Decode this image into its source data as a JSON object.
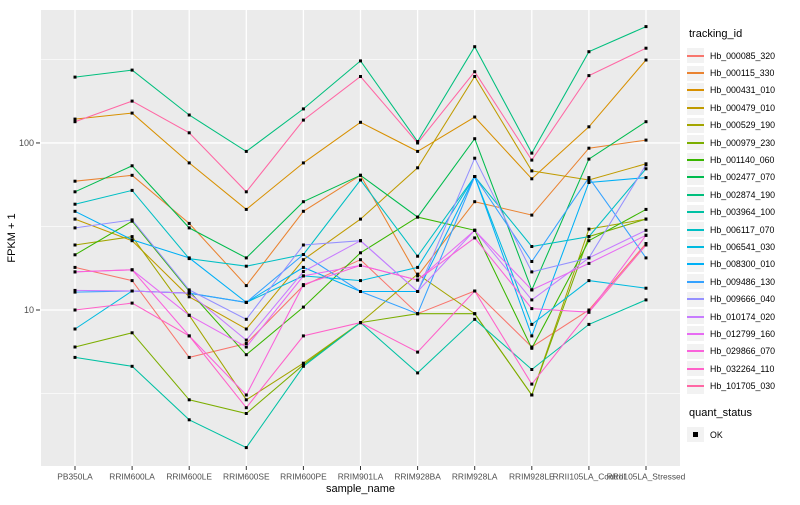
{
  "figure": {
    "background": "#FFFFFF",
    "panel_background": "#EBEBEB",
    "gridline_color": "#FFFFFF",
    "axis_text_color": "#4D4D4D",
    "axis_tick_color": "#333333",
    "point_color": "#000000"
  },
  "axes": {
    "x_title": "sample_name",
    "y_title": "FPKM + 1",
    "y_scale": "log10",
    "y_tick_labels": [
      "100",
      "10"
    ],
    "y_tick_values": [
      100,
      10
    ],
    "y_minor_values": [
      3.162,
      31.62,
      316.2
    ],
    "y_domain_log10": [
      0.066,
      2.796
    ]
  },
  "legend": {
    "title": "tracking_id",
    "position": "right"
  },
  "quant_legend": {
    "title": "quant_status",
    "items": [
      {
        "label": "OK",
        "marker": "black-square"
      }
    ]
  },
  "chart_data": {
    "type": "line",
    "title": "",
    "xlabel": "sample_name",
    "ylabel": "FPKM + 1",
    "y_scale": "log10",
    "ylim": [
      1.16,
      625
    ],
    "grid": true,
    "legend_position": "right",
    "marker": "small-black-square",
    "categories": [
      "PB350LA",
      "RRIM600LA",
      "RRIM600LE",
      "RRIM600SE",
      "RRIM600PE",
      "RRIM901LA",
      "RRIM928BA",
      "RRIM928LA",
      "RRIM928LE",
      "RRII105LA_Control",
      "RRII105LA_Stressed"
    ],
    "series": [
      {
        "name": "Hb_000085_320",
        "color": "#F8766D",
        "quant_status": "OK",
        "values": [
          18,
          15,
          5.2,
          6.3,
          14,
          20,
          9.5,
          13,
          6.0,
          10,
          25
        ]
      },
      {
        "name": "Hb_000115_330",
        "color": "#EA8331",
        "quant_status": "OK",
        "values": [
          59,
          64,
          33,
          14,
          39,
          64,
          16,
          44.5,
          37,
          93,
          104
        ]
      },
      {
        "name": "Hb_000431_010",
        "color": "#D89000",
        "quant_status": "OK",
        "values": [
          139,
          151,
          76,
          40,
          76,
          133,
          89,
          143,
          61,
          125,
          314
        ]
      },
      {
        "name": "Hb_000479_010",
        "color": "#C09B00",
        "quant_status": "OK",
        "values": [
          35,
          26,
          12,
          7.7,
          20,
          35,
          71,
          250,
          68,
          60,
          75
        ]
      },
      {
        "name": "Hb_000529_190",
        "color": "#A3A500",
        "quant_status": "OK",
        "values": [
          24.5,
          27.5,
          9.3,
          2.9,
          4.8,
          8.4,
          16.4,
          9.5,
          3.1,
          30.5,
          35
        ]
      },
      {
        "name": "Hb_000979_230",
        "color": "#7CAE00",
        "quant_status": "OK",
        "values": [
          6.0,
          7.3,
          2.9,
          2.4,
          4.7,
          8.4,
          9.5,
          9.5,
          3.1,
          27.5,
          35
        ]
      },
      {
        "name": "Hb_001140_060",
        "color": "#39B600",
        "quant_status": "OK",
        "values": [
          21.4,
          34,
          13,
          5.4,
          10.4,
          22,
          36,
          30,
          5.9,
          26,
          40
        ]
      },
      {
        "name": "Hb_002477_070",
        "color": "#00BB4E",
        "quant_status": "OK",
        "values": [
          51,
          73,
          31,
          20.5,
          44.5,
          64,
          36,
          106,
          13.2,
          80,
          134
        ]
      },
      {
        "name": "Hb_002874_190",
        "color": "#00BF7D",
        "quant_status": "OK",
        "values": [
          248,
          273,
          147,
          89,
          160,
          310,
          102,
          377,
          87,
          352,
          497
        ]
      },
      {
        "name": "Hb_003964_100",
        "color": "#00C1A3",
        "quant_status": "OK",
        "values": [
          5.2,
          4.6,
          2.2,
          1.5,
          4.6,
          8.4,
          4.2,
          8.8,
          4.4,
          8.2,
          11.5
        ]
      },
      {
        "name": "Hb_006117_070",
        "color": "#00BFC4",
        "quant_status": "OK",
        "values": [
          43,
          52,
          20.3,
          18.3,
          21.5,
          60,
          21,
          63,
          24,
          27.5,
          70
        ]
      },
      {
        "name": "Hb_006541_030",
        "color": "#00BAE0",
        "quant_status": "OK",
        "values": [
          7.7,
          13,
          12.6,
          11.1,
          16,
          15,
          18,
          63,
          8.2,
          15,
          13.5
        ]
      },
      {
        "name": "Hb_008300_010",
        "color": "#00B0F6",
        "quant_status": "OK",
        "values": [
          39,
          26.3,
          20.5,
          11.1,
          18,
          12.9,
          12.9,
          63,
          7.0,
          58,
          62
        ]
      },
      {
        "name": "Hb_009486_130",
        "color": "#35A2FF",
        "quant_status": "OK",
        "values": [
          12.8,
          13,
          12.6,
          11.1,
          21.5,
          12.9,
          9.5,
          63,
          19.5,
          62,
          20.5
        ]
      },
      {
        "name": "Hb_009666_040",
        "color": "#9590FF",
        "quant_status": "OK",
        "values": [
          31,
          34.6,
          13.2,
          8.8,
          24.5,
          26,
          12.9,
          81,
          16.9,
          20.5,
          74
        ]
      },
      {
        "name": "Hb_010174_020",
        "color": "#C77CFF",
        "quant_status": "OK",
        "values": [
          13.1,
          13,
          12.6,
          6.6,
          17,
          26,
          12.9,
          30,
          11.5,
          20.5,
          30
        ]
      },
      {
        "name": "Hb_012799_160",
        "color": "#E76BF3",
        "quant_status": "OK",
        "values": [
          16.9,
          17.4,
          9.3,
          6.0,
          16,
          18.5,
          15.1,
          30,
          13.2,
          19,
          28
        ]
      },
      {
        "name": "Hb_029866_070",
        "color": "#FA62DB",
        "quant_status": "OK",
        "values": [
          16.9,
          17.4,
          7.0,
          3.1,
          14.2,
          18.5,
          15.1,
          27,
          10.2,
          9.7,
          28
        ]
      },
      {
        "name": "Hb_032264_110",
        "color": "#FF61C9",
        "quant_status": "OK",
        "values": [
          10,
          11,
          7.0,
          2.6,
          7.0,
          8.4,
          5.6,
          13,
          3.6,
          9.7,
          24.5
        ]
      },
      {
        "name": "Hb_101705_030",
        "color": "#FF67A4",
        "quant_status": "OK",
        "values": [
          134,
          178,
          115,
          51,
          137,
          250,
          100,
          267,
          79,
          253,
          369
        ]
      }
    ]
  }
}
